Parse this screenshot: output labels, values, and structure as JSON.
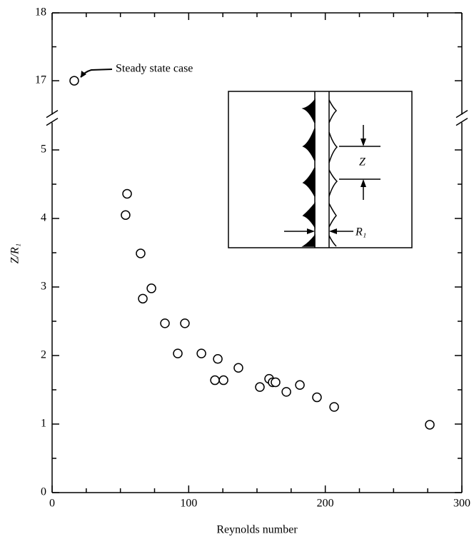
{
  "chart_data": {
    "type": "scatter",
    "x_label": "Reynolds number",
    "y_label": "Z/R₁",
    "annotation": "Steady state case",
    "inset_labels": {
      "gap": "Z",
      "radius": "R₁"
    },
    "x": [
      16.2,
      54.9,
      53.8,
      64.8,
      72.7,
      66.4,
      82.6,
      97.2,
      92.0,
      109.3,
      121.3,
      136.4,
      119.2,
      125.5,
      152.1,
      158.9,
      161.5,
      163.6,
      171.5,
      181.4,
      193.9,
      206.5,
      276.5
    ],
    "values": [
      17.0,
      4.36,
      4.05,
      3.49,
      2.98,
      2.83,
      2.47,
      2.47,
      2.03,
      2.03,
      1.95,
      1.82,
      1.64,
      1.64,
      1.54,
      1.66,
      1.61,
      1.61,
      1.47,
      1.57,
      1.39,
      1.25,
      0.99
    ],
    "xlim": [
      0,
      300
    ],
    "xticks": [
      0,
      100,
      200,
      300
    ],
    "xminorticks": [
      25,
      50,
      75,
      125,
      150,
      175,
      225,
      250,
      275
    ],
    "ylim": [
      0,
      18
    ],
    "ybreak": [
      5.4,
      16.5
    ],
    "yticks": [
      0,
      1,
      2,
      3,
      4,
      5,
      17,
      18
    ],
    "yminorticks": [
      0.5,
      1.5,
      2.5,
      3.5,
      4.5,
      17.5
    ],
    "color": "#000000"
  }
}
